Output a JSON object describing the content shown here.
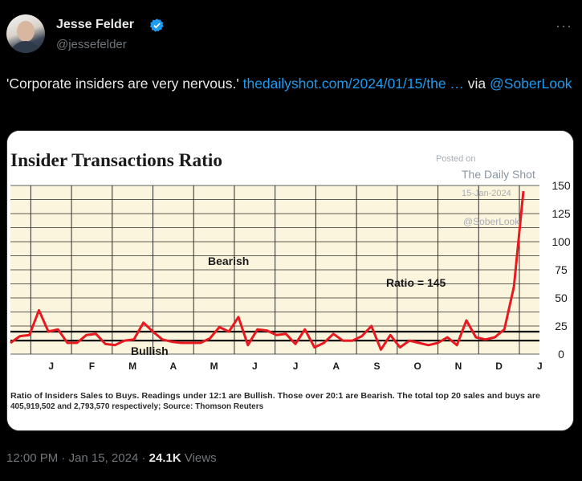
{
  "author": {
    "name": "Jesse Felder",
    "handle": "@jessefelder"
  },
  "tweet": {
    "text": "'Corporate insiders are very nervous.' ",
    "link_text": "thedailyshot.com/2024/01/15/the …",
    "via_text": " via ",
    "mention": "@SoberLook"
  },
  "chart_image": {
    "watermark_posted": "Posted on",
    "watermark_source": "The Daily Shot",
    "watermark_date": "15-Jan-2024",
    "watermark_handle": "@SoberLook",
    "caption_line1": "Ratio of Insiders Sales to Buys. Readings under 12:1 are Bullish. Those over 20:1 are Bearish. The total top 20 sales and buys are",
    "caption_line2": "405,919,502 and 2,793,570 respectively; Source: Thomson Reuters"
  },
  "chart_data": {
    "type": "line",
    "title": "Insider Transactions Ratio",
    "x_tick_labels": [
      "J",
      "F",
      "M",
      "A",
      "M",
      "J",
      "J",
      "A",
      "S",
      "O",
      "N",
      "D",
      "J"
    ],
    "y_tick_labels": [
      "150",
      "125",
      "100",
      "75",
      "50",
      "25",
      "0"
    ],
    "ylim": [
      0,
      150
    ],
    "annotations": {
      "bearish": "Bearish",
      "bullish": "Bullish",
      "ratio": "Ratio = 145"
    },
    "reference_lines": [
      12,
      20
    ],
    "series": [
      {
        "color": "#e8191f",
        "values": [
          10,
          16,
          17,
          39,
          20,
          22,
          10,
          10,
          17,
          18,
          9,
          8,
          12,
          13,
          28,
          20,
          13,
          11,
          10,
          10,
          10,
          14,
          24,
          20,
          33,
          8,
          22,
          21,
          17,
          18,
          9,
          22,
          6,
          10,
          18,
          12,
          12,
          16,
          25,
          4,
          17,
          6,
          12,
          10,
          8,
          10,
          15,
          8,
          30,
          15,
          13,
          15,
          22,
          60,
          145
        ]
      }
    ]
  },
  "footer": {
    "time": "12:00 PM",
    "dot1": " · ",
    "date": "Jan 15, 2024",
    "dot2": " · ",
    "views_count": "24.1K",
    "views_label": " Views"
  }
}
